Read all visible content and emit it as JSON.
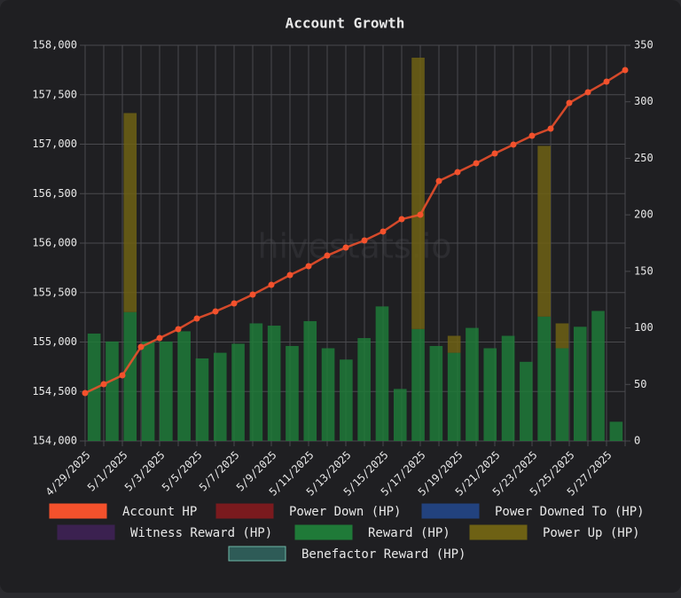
{
  "chart_data": {
    "type": "bar-line",
    "title": "Account Growth",
    "watermark": "hivestats.io",
    "categories": [
      "4/29/2025",
      null,
      "5/1/2025",
      null,
      "5/3/2025",
      null,
      "5/5/2025",
      null,
      "5/7/2025",
      null,
      "5/9/2025",
      null,
      "5/11/2025",
      null,
      "5/13/2025",
      null,
      "5/15/2025",
      null,
      "5/17/2025",
      null,
      "5/19/2025",
      null,
      "5/21/2025",
      null,
      "5/23/2025",
      null,
      "5/25/2025",
      null,
      "5/27/2025",
      null
    ],
    "ylim": [
      154000,
      158000
    ],
    "yticks": [
      {
        "value": 154000,
        "label": "154,000"
      },
      {
        "value": 154500,
        "label": "154,500"
      },
      {
        "value": 155000,
        "label": "155,000"
      },
      {
        "value": 155500,
        "label": "155,500"
      },
      {
        "value": 156000,
        "label": "156,000"
      },
      {
        "value": 156500,
        "label": "156,500"
      },
      {
        "value": 157000,
        "label": "157,000"
      },
      {
        "value": 157500,
        "label": "157,500"
      },
      {
        "value": 158000,
        "label": "158,000"
      }
    ],
    "y2lim": [
      0,
      350
    ],
    "y2ticks": [
      0,
      50,
      100,
      150,
      200,
      250,
      300,
      350
    ],
    "grid": true,
    "stacked": true,
    "series": [
      {
        "name": "Account HP",
        "color": "#f4512c",
        "kind": "line",
        "values": [
          154484,
          154574,
          154664,
          154951,
          155040,
          155130,
          155238,
          155309,
          155390,
          155480,
          155578,
          155677,
          155767,
          155874,
          155955,
          156027,
          156117,
          156242,
          156287,
          156628,
          156717,
          156807,
          156906,
          156996,
          157085,
          157157,
          157417,
          157525,
          157632,
          157749
        ]
      },
      {
        "name": "Power Down (HP)",
        "color": "#7a1a1e"
      },
      {
        "name": "Power Downed To (HP)",
        "color": "#22427e"
      },
      {
        "name": "Witness Reward (HP)",
        "color": "#3b2150"
      },
      {
        "name": "Reward (HP)",
        "color": "#1f7a38",
        "kind": "bar",
        "axis": "y2",
        "values": [
          95,
          88,
          114,
          88,
          88,
          97,
          73,
          78,
          86,
          104,
          102,
          84,
          106,
          82,
          72,
          91,
          119,
          46,
          99,
          84,
          78,
          100,
          82,
          93,
          70,
          110,
          82,
          101,
          115,
          17
        ]
      },
      {
        "name": "Power Up (HP)",
        "color": "#6e6114",
        "kind": "bar",
        "axis": "y2",
        "values": [
          0,
          0,
          176,
          0,
          0,
          0,
          0,
          0,
          0,
          0,
          0,
          0,
          0,
          0,
          0,
          0,
          0,
          0,
          240,
          0,
          15,
          0,
          0,
          0,
          0,
          151,
          22,
          0,
          0,
          0
        ]
      },
      {
        "name": "Benefactor Reward (HP)",
        "color": "#2e5b57"
      }
    ]
  }
}
